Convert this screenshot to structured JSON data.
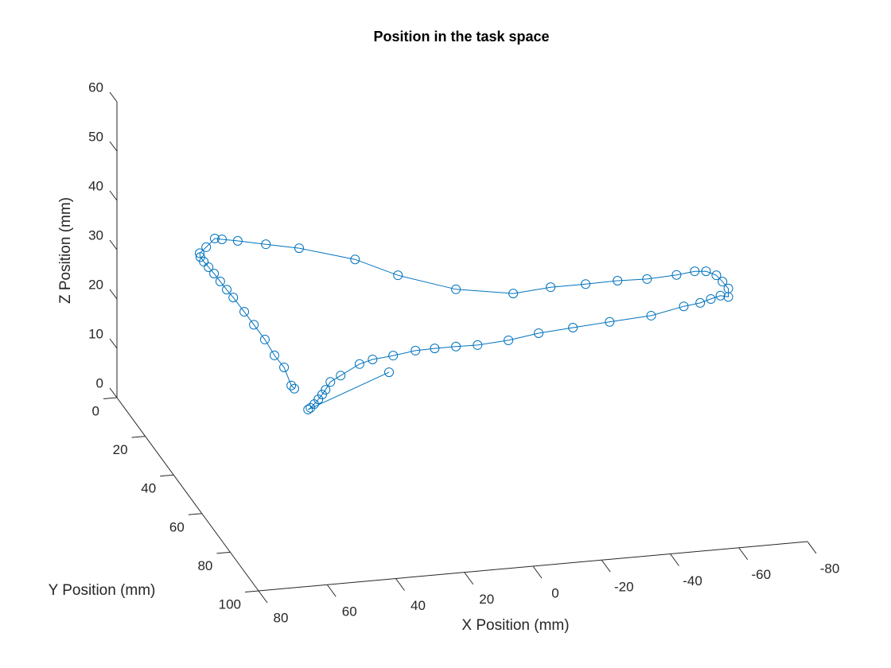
{
  "chart_data": {
    "type": "line3d",
    "title": "Position in the task space",
    "xlabel": "X Position (mm)",
    "ylabel": "Y Position (mm)",
    "zlabel": "Z Position (mm)",
    "xlim": [
      -80,
      80
    ],
    "ylim": [
      0,
      100
    ],
    "zlim": [
      0,
      60
    ],
    "xticks": [
      80,
      60,
      40,
      20,
      0,
      -20,
      -40,
      -60,
      -80
    ],
    "yticks": [
      0,
      20,
      40,
      60,
      80,
      100
    ],
    "zticks": [
      0,
      10,
      20,
      30,
      40,
      50,
      60
    ],
    "series": [
      {
        "color": "#0072bd",
        "marker": "circle",
        "x": [
          17.2,
          40.8,
          40.1,
          39.0,
          37.8,
          36.7,
          35.7,
          34.3,
          31.3,
          25.8,
          22.0,
          16.0,
          9.5,
          3.9,
          -2.3,
          -8.6,
          -17.6,
          -26.4,
          -36.4,
          -47.1,
          -59.2,
          -68.7,
          -73.5,
          -76.6,
          -79.4,
          -81.7,
          -81.7,
          -80.0,
          -78.2,
          -75.2,
          -71.9,
          -66.6,
          -58.0,
          -49.4,
          -40.1,
          -29.9,
          -19.0,
          -2.3,
          14.6,
          27.1,
          43.4,
          53.1,
          61.3,
          65.9,
          68.0,
          70.5,
          72.4,
          72.2,
          71.2,
          69.8,
          68.2,
          66.4,
          64.5,
          62.6,
          59.4,
          56.6,
          53.4,
          50.6,
          47.8,
          45.7,
          44.8
        ],
        "y": [
          40,
          40,
          40,
          40,
          40,
          40,
          40,
          40,
          40,
          40,
          40,
          40,
          40,
          40,
          40,
          40,
          40,
          40,
          40,
          40,
          40,
          40,
          40,
          40,
          40,
          40,
          40,
          40,
          40,
          40,
          40,
          40,
          40,
          40,
          40,
          40,
          40,
          40,
          40,
          40,
          40,
          40,
          40,
          40,
          40,
          40,
          40,
          40,
          40,
          40,
          40,
          40,
          40,
          40,
          40,
          40,
          40,
          40,
          40,
          40,
          40
        ],
        "z": [
          16.9,
          10.8,
          11.1,
          11.8,
          12.7,
          13.6,
          14.5,
          16.0,
          17.1,
          19.1,
          19.8,
          20.2,
          20.8,
          20.9,
          20.9,
          20.8,
          21.2,
          22.1,
          22.6,
          23.1,
          23.6,
          24.9,
          25.3,
          25.9,
          26.4,
          26.0,
          27.7,
          29.2,
          30.6,
          31.6,
          31.8,
          31.4,
          31.1,
          31.3,
          31.2,
          31.2,
          30.6,
          32.5,
          36.4,
          40.4,
          43.7,
          45.1,
          46.3,
          46.9,
          47.2,
          45.6,
          44.5,
          43.7,
          42.7,
          41.5,
          40.1,
          38.4,
          36.6,
          34.9,
          31.8,
          29.0,
          25.8,
          22.4,
          19.8,
          16.0,
          15.3
        ]
      }
    ]
  }
}
